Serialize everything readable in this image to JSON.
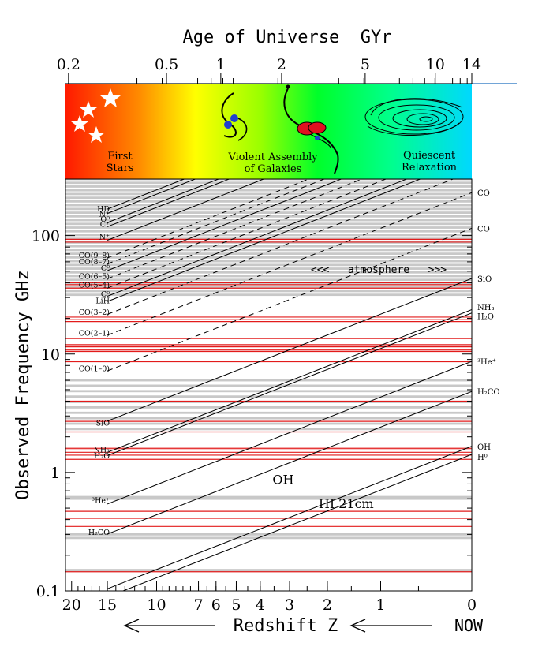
{
  "chart_data": {
    "type": "line",
    "top_axis": {
      "title": "Age of Universe  GYr",
      "ticks": [
        {
          "label": "0.2",
          "z": 20.5
        },
        {
          "label": "0.5",
          "z": 9.2
        },
        {
          "label": "1",
          "z": 5.75
        },
        {
          "label": "2",
          "z": 3.25
        },
        {
          "label": "5",
          "z": 1.25
        },
        {
          "label": "10",
          "z": 0.32
        },
        {
          "label": "14",
          "z": 0.0
        }
      ]
    },
    "bottom_axis": {
      "title": "Redshift Z",
      "ticks": [
        {
          "label": "20",
          "z": 20
        },
        {
          "label": "15",
          "z": 15
        },
        {
          "label": "10",
          "z": 10
        },
        {
          "label": "7",
          "z": 7
        },
        {
          "label": "6",
          "z": 6
        },
        {
          "label": "5",
          "z": 5
        },
        {
          "label": "4",
          "z": 4
        },
        {
          "label": "3",
          "z": 3
        },
        {
          "label": "2",
          "z": 2
        },
        {
          "label": "1",
          "z": 1
        },
        {
          "label": "0",
          "z": 0
        }
      ],
      "now_label": "NOW"
    },
    "y_axis": {
      "title": "Observed Frequency GHz",
      "scale": "log",
      "ylim": [
        0.1,
        300
      ],
      "ticks": [
        {
          "label": "0.1",
          "value": 0.1
        },
        {
          "label": "1",
          "value": 1
        },
        {
          "label": "10",
          "value": 10
        },
        {
          "label": "100",
          "value": 100
        }
      ]
    },
    "era_panel": [
      {
        "label1": "First",
        "label2": "Stars"
      },
      {
        "label1": "Violent Assembly",
        "label2": "of Galaxies"
      },
      {
        "label1": "Quiescent",
        "label2": "Relaxation"
      }
    ],
    "atmosphere_label": "<<<   atmosphere   >>>",
    "series": [
      {
        "name": "HD",
        "rest_ghz": 2674.986,
        "style": "solid",
        "label_side": "left",
        "label_freq": 167
      },
      {
        "name": "N⁺",
        "rest_ghz": 2459.38,
        "style": "solid",
        "label_side": "left",
        "label_freq": 152
      },
      {
        "name": "O⁰",
        "rest_ghz": 2060.07,
        "style": "solid",
        "label_side": "left",
        "label_freq": 137
      },
      {
        "name": "C⁺",
        "rest_ghz": 1900.54,
        "style": "solid",
        "label_side": "left",
        "label_freq": 124
      },
      {
        "name": "N⁺",
        "rest_ghz": 1461.13,
        "style": "solid",
        "label_side": "left",
        "label_freq": 97
      },
      {
        "name": "CO(9–8)",
        "rest_ghz": 1036.9,
        "style": "dashed",
        "label_side": "left",
        "label_freq": 68
      },
      {
        "name": "CO(8–7)",
        "rest_ghz": 921.8,
        "style": "dashed",
        "label_side": "left",
        "label_freq": 60
      },
      {
        "name": "C⁰",
        "rest_ghz": 809.34,
        "style": "solid",
        "label_side": "left",
        "label_freq": 53
      },
      {
        "name": "CO(6–5)",
        "rest_ghz": 691.47,
        "style": "dashed",
        "label_side": "left",
        "label_freq": 45
      },
      {
        "name": "CO(5–4)",
        "rest_ghz": 576.27,
        "style": "dashed",
        "label_side": "left",
        "label_freq": 38
      },
      {
        "name": "C⁰",
        "rest_ghz": 492.16,
        "style": "solid",
        "label_side": "left",
        "label_freq": 32
      },
      {
        "name": "LiH",
        "rest_ghz": 443.95,
        "style": "solid",
        "label_side": "left",
        "label_freq": 28
      },
      {
        "name": "CO(3–2)",
        "rest_ghz": 345.8,
        "style": "dashed",
        "label_side": "left",
        "label_freq": 22.5
      },
      {
        "name": "CO(2–1)",
        "rest_ghz": 230.54,
        "style": "dashed",
        "label_side": "left",
        "label_freq": 15
      },
      {
        "name": "CO(1–0)",
        "rest_ghz": 115.27,
        "style": "dashed",
        "label_side": "left",
        "label_freq": 7.5
      },
      {
        "name": "SiO",
        "rest_ghz": 43.42,
        "style": "solid",
        "label_side": "left",
        "label_freq": 2.6
      },
      {
        "name": "NH₃",
        "rest_ghz": 23.69,
        "style": "solid",
        "label_side": "left",
        "label_freq": 1.55
      },
      {
        "name": "H₂O",
        "rest_ghz": 22.235,
        "style": "solid",
        "label_side": "left",
        "label_freq": 1.38
      },
      {
        "name": "³He⁺",
        "rest_ghz": 8.6657,
        "style": "solid",
        "label_side": "left",
        "label_freq": 0.58
      },
      {
        "name": "H₂CO",
        "rest_ghz": 4.8297,
        "style": "solid",
        "label_side": "left",
        "label_freq": 0.31
      },
      {
        "name": "OH",
        "rest_ghz": 1.667,
        "style": "solid",
        "label_side": "inline",
        "label_freq": 0.8,
        "label_z": 3.2
      },
      {
        "name": "HI 21cm",
        "rest_ghz": 1.42,
        "style": "solid",
        "label_side": "inline",
        "label_freq": 0.5,
        "label_z": 1.6
      }
    ],
    "right_labels": [
      {
        "text": "CO",
        "freq": 230.5
      },
      {
        "text": "CO",
        "freq": 115.3
      },
      {
        "text": "SiO",
        "freq": 43.4
      },
      {
        "text": "NH₃",
        "freq": 25.0
      },
      {
        "text": "H₂O",
        "freq": 21.0
      },
      {
        "text": "³He⁺",
        "freq": 8.67
      },
      {
        "text": "H₂CO",
        "freq": 4.83
      },
      {
        "text": "OH",
        "freq": 1.66
      },
      {
        "text": "H⁰",
        "freq": 1.36
      }
    ],
    "interference_lines_ghz": [
      93,
      88,
      40,
      38.5,
      36,
      20.5,
      19.5,
      18.8,
      13.5,
      12,
      11.5,
      10.8,
      10.5,
      8.6,
      4,
      2.7,
      2.2,
      1.6,
      1.55,
      1.48,
      1.4,
      1.29,
      0.47,
      0.41,
      0.35,
      0.145
    ],
    "colors": {
      "interference": "#e21b1b",
      "atmosphere_band": "#c8c8c8",
      "line": "#000000",
      "top_rule": "#1f6fbf"
    }
  }
}
